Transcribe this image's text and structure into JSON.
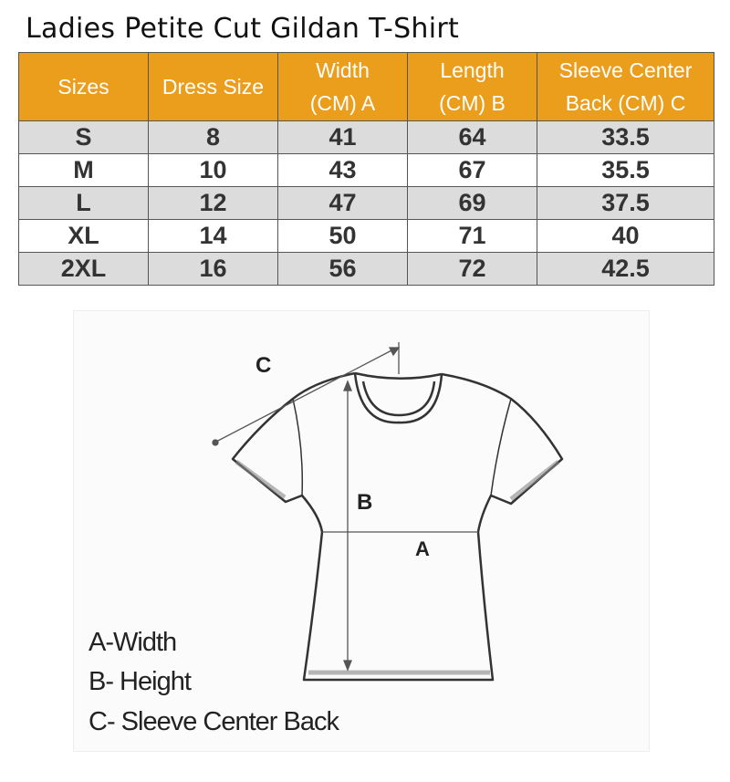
{
  "title": "Ladies Petite Cut Gildan T-Shirt",
  "table": {
    "headers": [
      [
        "Sizes"
      ],
      [
        "Dress Size"
      ],
      [
        "Width",
        "(CM) A"
      ],
      [
        "Length",
        "(CM) B"
      ],
      [
        "Sleeve Center",
        "Back (CM) C"
      ]
    ],
    "rows": [
      [
        "S",
        "8",
        "41",
        "64",
        "33.5"
      ],
      [
        "M",
        "10",
        "43",
        "67",
        "35.5"
      ],
      [
        "L",
        "12",
        "47",
        "69",
        "37.5"
      ],
      [
        "XL",
        "14",
        "50",
        "71",
        "40"
      ],
      [
        "2XL",
        "16",
        "56",
        "72",
        "42.5"
      ]
    ]
  },
  "diagram": {
    "labels": {
      "a": "A",
      "b": "B",
      "c": "C"
    },
    "legend": [
      "A-Width",
      "B- Height",
      "C- Sleeve Center Back"
    ]
  },
  "colors": {
    "header_bg": "#eb9d1c",
    "stripe": "#dcdcdc"
  }
}
